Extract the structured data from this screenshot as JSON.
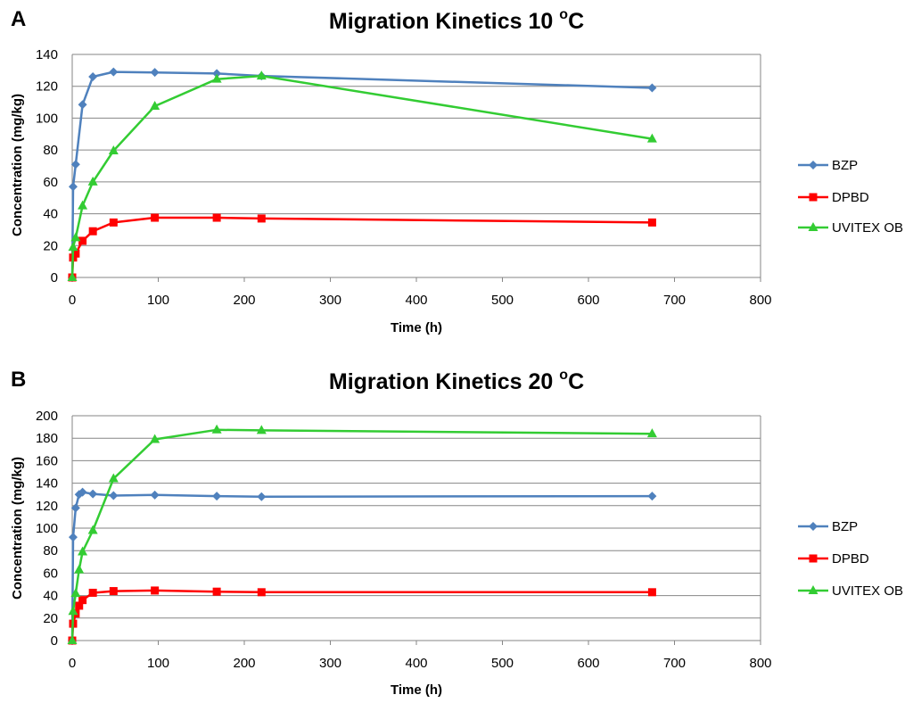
{
  "chart_data": [
    {
      "type": "line",
      "panel": "A",
      "title": "Migration Kinetics 10",
      "title_sup": "o",
      "title_unit": "C",
      "xlabel": "Time (h)",
      "ylabel": "Concentration (mg/kg)",
      "xlim": [
        0,
        800
      ],
      "ylim": [
        0,
        140
      ],
      "xticks": [
        0,
        100,
        200,
        300,
        400,
        500,
        600,
        700,
        800
      ],
      "yticks": [
        0,
        20,
        40,
        60,
        80,
        100,
        120,
        140
      ],
      "grid": true,
      "legend": "right",
      "series": [
        {
          "name": "BZP",
          "color": "#4f81bd",
          "marker": "diamond",
          "x": [
            0,
            1,
            4,
            12,
            24,
            48,
            96,
            168,
            220,
            674
          ],
          "y": [
            0,
            57,
            71,
            108.5,
            126,
            129,
            128.7,
            128,
            126.5,
            119
          ]
        },
        {
          "name": "DPBD",
          "color": "#ff0000",
          "marker": "square",
          "x": [
            0,
            1,
            4,
            12,
            24,
            48,
            96,
            168,
            220,
            674
          ],
          "y": [
            0,
            12.5,
            15,
            23,
            29,
            34.5,
            37.5,
            37.5,
            37,
            34.5
          ]
        },
        {
          "name": "UVITEX OB",
          "color": "#33cc33",
          "marker": "triangle",
          "x": [
            0,
            1,
            4,
            12,
            24,
            48,
            96,
            168,
            220,
            674
          ],
          "y": [
            0,
            19,
            25,
            45,
            60,
            79.5,
            107.5,
            124.5,
            126.5,
            87
          ]
        }
      ]
    },
    {
      "type": "line",
      "panel": "B",
      "title": "Migration Kinetics 20",
      "title_sup": "o",
      "title_unit": "C",
      "xlabel": "Time (h)",
      "ylabel": "Concentration (mg/kg)",
      "xlim": [
        0,
        800
      ],
      "ylim": [
        0,
        200
      ],
      "xticks": [
        0,
        100,
        200,
        300,
        400,
        500,
        600,
        700,
        800
      ],
      "yticks": [
        0,
        20,
        40,
        60,
        80,
        100,
        120,
        140,
        160,
        180,
        200
      ],
      "grid": true,
      "legend": "right",
      "series": [
        {
          "name": "BZP",
          "color": "#4f81bd",
          "marker": "diamond",
          "x": [
            0,
            1,
            4,
            8,
            12,
            24,
            48,
            96,
            168,
            220,
            674
          ],
          "y": [
            0,
            92,
            118,
            130,
            132,
            130.5,
            129,
            129.5,
            128.5,
            128,
            128.5
          ]
        },
        {
          "name": "DPBD",
          "color": "#ff0000",
          "marker": "square",
          "x": [
            0,
            1,
            4,
            8,
            12,
            24,
            48,
            96,
            168,
            220,
            674
          ],
          "y": [
            0,
            15,
            24,
            31,
            36,
            42.5,
            44,
            44.5,
            43.5,
            43,
            43
          ]
        },
        {
          "name": "UVITEX OB",
          "color": "#33cc33",
          "marker": "triangle",
          "x": [
            0,
            1,
            4,
            8,
            12,
            24,
            48,
            96,
            168,
            220,
            674
          ],
          "y": [
            0,
            26,
            42,
            63,
            79,
            98,
            144,
            179,
            187.5,
            187,
            184
          ]
        }
      ]
    }
  ]
}
